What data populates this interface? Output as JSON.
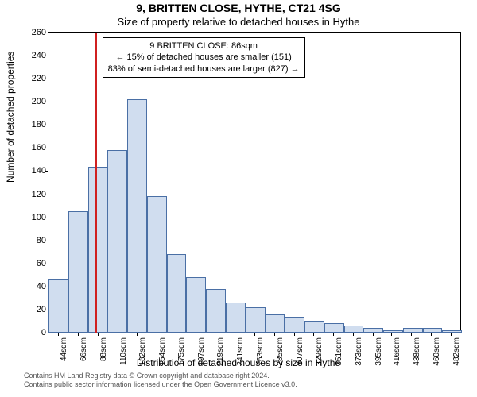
{
  "title_main": "9, BRITTEN CLOSE, HYTHE, CT21 4SG",
  "title_sub": "Size of property relative to detached houses in Hythe",
  "ylabel": "Number of detached properties",
  "xlabel": "Distribution of detached houses by size in Hythe",
  "chart": {
    "type": "histogram",
    "background_color": "#ffffff",
    "bar_fill": "#d0ddef",
    "bar_border": "#4a6fa5",
    "ref_line_color": "#d02020",
    "axis_color": "#000000",
    "ylim": [
      0,
      260
    ],
    "ytick_step": 20,
    "xmin": 33,
    "xmax": 493,
    "xticks": [
      44,
      66,
      88,
      110,
      132,
      154,
      175,
      197,
      219,
      241,
      263,
      285,
      307,
      329,
      351,
      373,
      395,
      416,
      438,
      460,
      482
    ],
    "xtick_suffix": "sqm",
    "bin_width": 22,
    "ref_line_x": 86,
    "bars": [
      {
        "x0": 33,
        "count": 46
      },
      {
        "x0": 55,
        "count": 105
      },
      {
        "x0": 77,
        "count": 144
      },
      {
        "x0": 99,
        "count": 158
      },
      {
        "x0": 121,
        "count": 202
      },
      {
        "x0": 143,
        "count": 118
      },
      {
        "x0": 165,
        "count": 68
      },
      {
        "x0": 187,
        "count": 48
      },
      {
        "x0": 209,
        "count": 38
      },
      {
        "x0": 231,
        "count": 26
      },
      {
        "x0": 253,
        "count": 22
      },
      {
        "x0": 275,
        "count": 16
      },
      {
        "x0": 297,
        "count": 14
      },
      {
        "x0": 319,
        "count": 10
      },
      {
        "x0": 341,
        "count": 8
      },
      {
        "x0": 363,
        "count": 6
      },
      {
        "x0": 385,
        "count": 4
      },
      {
        "x0": 407,
        "count": 2
      },
      {
        "x0": 429,
        "count": 4
      },
      {
        "x0": 451,
        "count": 4
      },
      {
        "x0": 473,
        "count": 2
      }
    ]
  },
  "annotation": {
    "line1": "9 BRITTEN CLOSE: 86sqm",
    "line2": "← 15% of detached houses are smaller (151)",
    "line3": "83% of semi-detached houses are larger (827) →"
  },
  "footer": {
    "line1": "Contains HM Land Registry data © Crown copyright and database right 2024.",
    "line2": "Contains public sector information licensed under the Open Government Licence v3.0."
  }
}
